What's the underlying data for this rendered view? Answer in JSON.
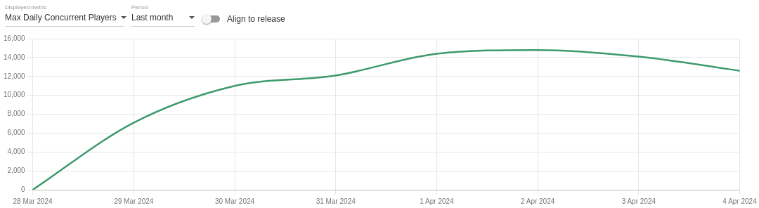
{
  "chart_data": {
    "type": "line",
    "categories": [
      "28 Mar 2024",
      "29 Mar 2024",
      "30 Mar 2024",
      "31 Mar 2024",
      "1 Apr 2024",
      "2 Apr 2024",
      "3 Apr 2024",
      "4 Apr 2024"
    ],
    "series": [
      {
        "color": "#3d9a6c",
        "values": [
          0,
          7100,
          11000,
          12100,
          14400,
          14800,
          14100,
          12600
        ]
      }
    ],
    "ylim": [
      0,
      16000
    ],
    "yticks": [
      0,
      {
        "value": 2000,
        "label": "2,000"
      },
      {
        "value": 4000,
        "label": "4,000"
      },
      {
        "value": 6000,
        "label": "6,000"
      },
      {
        "value": 8000,
        "label": "8,000"
      },
      {
        "value": 10000,
        "label": "10,000"
      },
      {
        "value": 12000,
        "label": "12,000"
      },
      {
        "value": 14000,
        "label": "14,000"
      },
      {
        "value": 16000,
        "label": "16,000"
      }
    ],
    "grid": true,
    "legend": false,
    "marker": "none",
    "line_style": "solid",
    "annotations": [
      "Displayed metric",
      "Max Daily Concurrent Players",
      "Period",
      "Last month",
      "Align to release"
    ]
  }
}
